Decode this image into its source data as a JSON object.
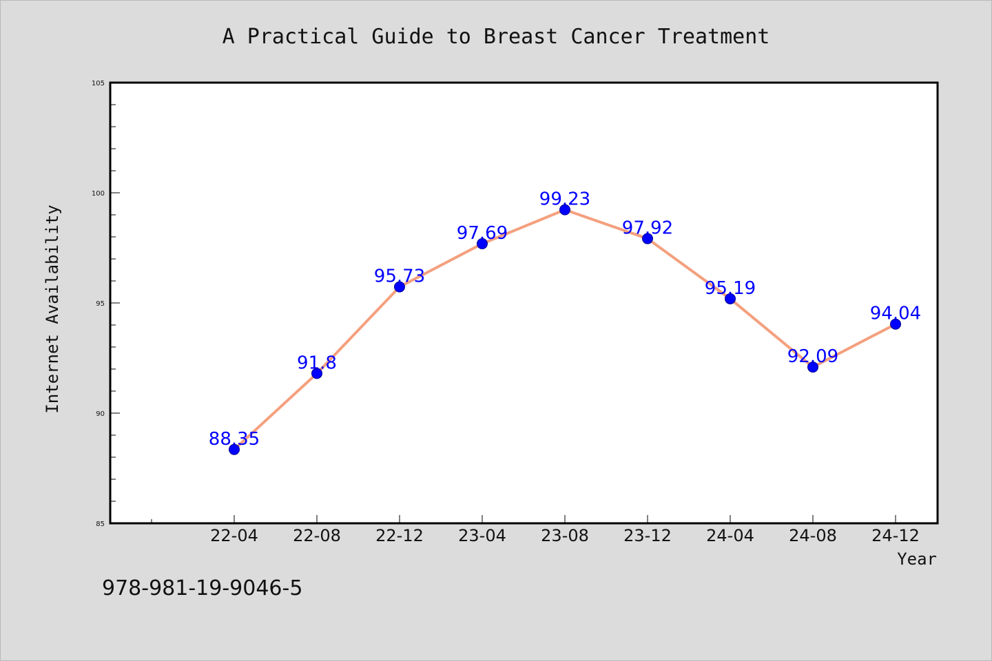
{
  "chart_data": {
    "type": "line",
    "title": "A Practical Guide to Breast Cancer Treatment",
    "xlabel": "Year",
    "ylabel": "Internet Availability",
    "categories": [
      "22-04",
      "22-08",
      "22-12",
      "23-04",
      "23-08",
      "23-12",
      "24-04",
      "24-08",
      "24-12"
    ],
    "series": [
      {
        "values": [
          88.35,
          91.8,
          95.73,
          97.69,
          99.23,
          97.92,
          95.19,
          92.09,
          94.04
        ],
        "labels": [
          "88.35",
          "91.8",
          "95.73",
          "97.69",
          "99.23",
          "97.92",
          "95.19",
          "92.09",
          "94.04"
        ]
      }
    ],
    "ylim": [
      85,
      105
    ],
    "yticks": [
      "85",
      "90",
      "95",
      "100",
      "105"
    ],
    "grid": false,
    "legend": "none"
  },
  "footer": {
    "isbn": "978-981-19-9046-5"
  },
  "colors": {
    "background": "#dcdcdc",
    "plot_area": "#ffffff",
    "line": "#f4a07e",
    "marker": "#0000ff",
    "label": "#0000ff"
  }
}
